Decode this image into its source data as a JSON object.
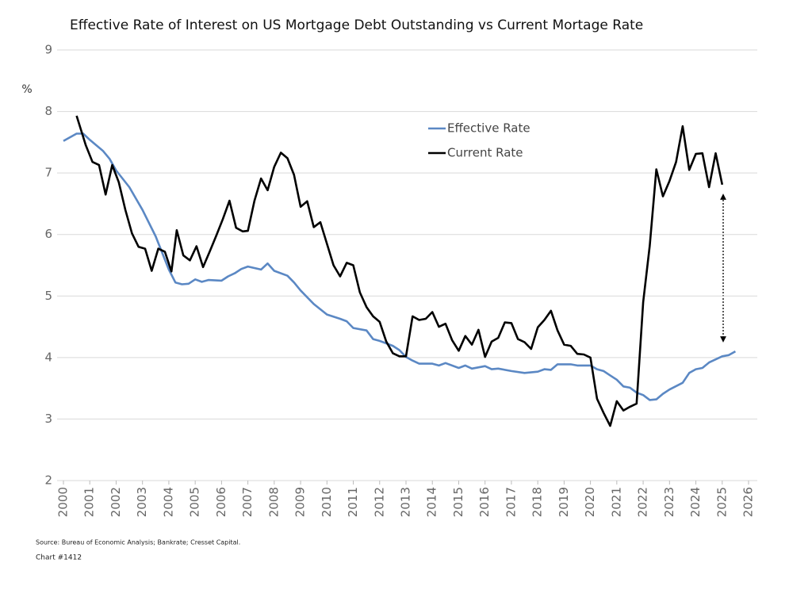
{
  "chart_data": {
    "type": "line",
    "title": "Effective Rate of Interest on US Mortgage Debt Outstanding vs Current Mortage Rate",
    "ylabel": "%",
    "source": "Source: Bureau of Economic Analysis; Bankrate; Cresset Capital.",
    "chart_number": "Chart #1412",
    "xlim": [
      2000,
      2026
    ],
    "xticks": [
      2000,
      2001,
      2002,
      2003,
      2004,
      2005,
      2006,
      2007,
      2008,
      2009,
      2010,
      2011,
      2012,
      2013,
      2014,
      2015,
      2016,
      2017,
      2018,
      2019,
      2020,
      2021,
      2022,
      2023,
      2024,
      2025,
      2026
    ],
    "ylim": [
      2,
      9
    ],
    "yticks": [
      2,
      3,
      4,
      5,
      6,
      7,
      8,
      9
    ],
    "grid": true,
    "legend": "upper center",
    "series": [
      {
        "name": "Effective Rate",
        "color": "#5b88c4",
        "x": [
          2000,
          2000.5,
          2000.75,
          2001,
          2001.25,
          2001.5,
          2001.75,
          2002,
          2002.5,
          2003,
          2003.5,
          2004,
          2004.25,
          2004.5,
          2004.75,
          2005,
          2005.25,
          2005.5,
          2006,
          2006.25,
          2006.5,
          2006.75,
          2007,
          2007.5,
          2007.75,
          2008,
          2008.5,
          2008.75,
          2009,
          2009.5,
          2010,
          2010.5,
          2010.75,
          2011,
          2011.5,
          2011.75,
          2012,
          2012.5,
          2012.75,
          2013,
          2013.25,
          2013.5,
          2014,
          2014.25,
          2014.5,
          2015,
          2015.25,
          2015.5,
          2016,
          2016.25,
          2016.5,
          2017,
          2017.5,
          2018,
          2018.25,
          2018.5,
          2018.75,
          2019.25,
          2019.5,
          2020,
          2020.25,
          2020.5,
          2020.75,
          2021,
          2021.25,
          2021.5,
          2021.75,
          2022,
          2022.25,
          2022.5,
          2022.75,
          2023,
          2023.5,
          2023.75,
          2024,
          2024.25,
          2024.5,
          2025,
          2025.25,
          2025.5
        ],
        "values": [
          7.52,
          7.64,
          7.64,
          7.54,
          7.45,
          7.36,
          7.23,
          7.04,
          6.77,
          6.4,
          5.97,
          5.43,
          5.22,
          5.19,
          5.2,
          5.27,
          5.23,
          5.26,
          5.25,
          5.32,
          5.37,
          5.44,
          5.48,
          5.43,
          5.53,
          5.41,
          5.33,
          5.22,
          5.09,
          4.87,
          4.7,
          4.63,
          4.59,
          4.48,
          4.44,
          4.3,
          4.27,
          4.19,
          4.12,
          4.01,
          3.95,
          3.9,
          3.9,
          3.87,
          3.91,
          3.83,
          3.87,
          3.82,
          3.86,
          3.81,
          3.82,
          3.78,
          3.75,
          3.77,
          3.81,
          3.8,
          3.89,
          3.89,
          3.87,
          3.87,
          3.81,
          3.78,
          3.71,
          3.64,
          3.53,
          3.51,
          3.43,
          3.39,
          3.31,
          3.32,
          3.41,
          3.48,
          3.59,
          3.75,
          3.81,
          3.83,
          3.92,
          4.02,
          4.04,
          4.1
        ]
      },
      {
        "name": "Current Rate",
        "color": "#000000",
        "x": [
          2000.5,
          2000.85,
          2001.1,
          2001.35,
          2001.6,
          2001.85,
          2002.1,
          2002.35,
          2002.6,
          2002.85,
          2003.1,
          2003.35,
          2003.6,
          2003.85,
          2004.1,
          2004.3,
          2004.55,
          2004.8,
          2005.05,
          2005.3,
          2005.55,
          2005.8,
          2006.05,
          2006.3,
          2006.55,
          2006.8,
          2007,
          2007.25,
          2007.5,
          2007.75,
          2008,
          2008.25,
          2008.5,
          2008.75,
          2009,
          2009.25,
          2009.5,
          2009.75,
          2010,
          2010.25,
          2010.5,
          2010.75,
          2011,
          2011.25,
          2011.5,
          2011.75,
          2012,
          2012.25,
          2012.5,
          2012.75,
          2013,
          2013.25,
          2013.5,
          2013.75,
          2014,
          2014.25,
          2014.5,
          2014.75,
          2015,
          2015.25,
          2015.5,
          2015.75,
          2016,
          2016.25,
          2016.5,
          2016.75,
          2017,
          2017.25,
          2017.5,
          2017.75,
          2018,
          2018.25,
          2018.5,
          2018.75,
          2019,
          2019.25,
          2019.5,
          2019.75,
          2020,
          2020.25,
          2020.5,
          2020.75,
          2021,
          2021.25,
          2021.5,
          2021.75,
          2022,
          2022.25,
          2022.5,
          2022.75,
          2023,
          2023.25,
          2023.5,
          2023.75,
          2024,
          2024.25,
          2024.5,
          2024.75,
          2025
        ],
        "values": [
          7.93,
          7.45,
          7.18,
          7.13,
          6.65,
          7.13,
          6.85,
          6.4,
          6.02,
          5.8,
          5.77,
          5.41,
          5.77,
          5.72,
          5.4,
          6.07,
          5.66,
          5.58,
          5.81,
          5.47,
          5.72,
          5.98,
          6.25,
          6.55,
          6.11,
          6.05,
          6.06,
          6.55,
          6.91,
          6.72,
          7.1,
          7.33,
          7.24,
          6.97,
          6.45,
          6.54,
          6.12,
          6.2,
          5.85,
          5.5,
          5.32,
          5.54,
          5.5,
          5.06,
          4.82,
          4.67,
          4.58,
          4.26,
          4.07,
          4.02,
          4.02,
          4.67,
          4.61,
          4.63,
          4.74,
          4.5,
          4.55,
          4.28,
          4.11,
          4.35,
          4.21,
          4.45,
          4.01,
          4.26,
          4.32,
          4.57,
          4.56,
          4.3,
          4.25,
          4.14,
          4.49,
          4.61,
          4.76,
          4.44,
          4.21,
          4.19,
          4.06,
          4.05,
          4.0,
          3.33,
          3.1,
          2.89,
          3.29,
          3.14,
          3.2,
          3.25,
          4.9,
          5.82,
          7.06,
          6.62,
          6.87,
          7.18,
          7.76,
          7.05,
          7.31,
          7.32,
          6.77,
          7.32,
          6.81
        ]
      }
    ]
  }
}
